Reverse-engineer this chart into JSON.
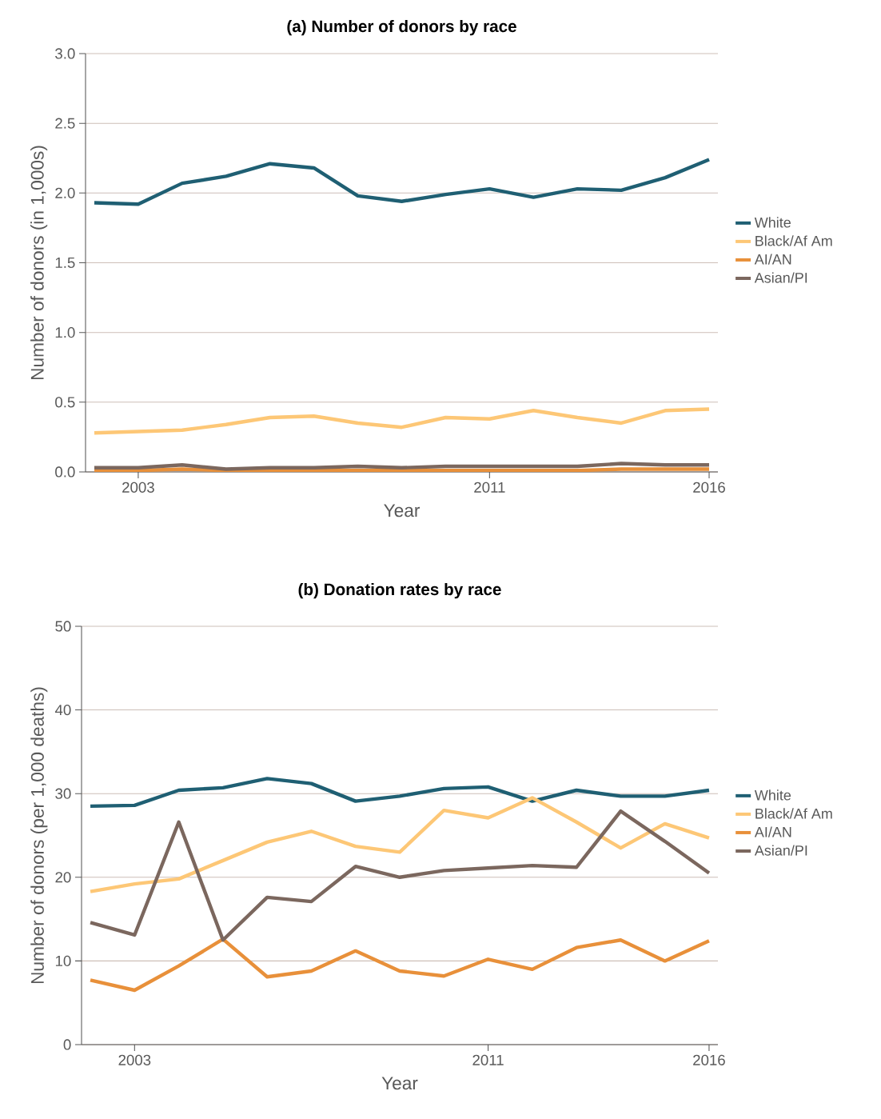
{
  "chart_data": [
    {
      "type": "line",
      "title": "(a) Number of donors by race",
      "xlabel": "Year",
      "ylabel": "Number of donors (in 1,000s)",
      "x": [
        2002,
        2003,
        2004,
        2005,
        2006,
        2007,
        2008,
        2009,
        2010,
        2011,
        2012,
        2013,
        2014,
        2015,
        2016
      ],
      "xlim": [
        2001.8,
        2016.2
      ],
      "xticks": [
        2003,
        2011,
        2016
      ],
      "ylim": [
        0,
        3
      ],
      "yticks": [
        {
          "value": 0,
          "label": "0.0"
        },
        {
          "value": 0.5,
          "label": "0.5"
        },
        {
          "value": 1,
          "label": "1.0"
        },
        {
          "value": 1.5,
          "label": "1.5"
        },
        {
          "value": 2,
          "label": "2.0"
        },
        {
          "value": 2.5,
          "label": "2.5"
        },
        {
          "value": 3,
          "label": "3.0"
        }
      ],
      "grid": "y",
      "legend": "right",
      "marker": "none",
      "line_style": "solid",
      "series": [
        {
          "name": "White",
          "color": "#1f5f73",
          "values": [
            1.93,
            1.92,
            2.07,
            2.12,
            2.21,
            2.18,
            1.98,
            1.94,
            1.99,
            2.03,
            1.97,
            2.03,
            2.02,
            2.11,
            2.24
          ]
        },
        {
          "name": "Black/Af Am",
          "color": "#fdc776",
          "values": [
            0.28,
            0.29,
            0.3,
            0.34,
            0.39,
            0.4,
            0.35,
            0.32,
            0.39,
            0.38,
            0.44,
            0.39,
            0.35,
            0.44,
            0.45
          ]
        },
        {
          "name": "AI/AN",
          "color": "#e8903a",
          "values": [
            0.01,
            0.01,
            0.02,
            0.01,
            0.01,
            0.01,
            0.01,
            0.01,
            0.01,
            0.01,
            0.01,
            0.01,
            0.02,
            0.02,
            0.02
          ]
        },
        {
          "name": "Asian/PI",
          "color": "#7b675e",
          "values": [
            0.03,
            0.03,
            0.05,
            0.02,
            0.03,
            0.03,
            0.04,
            0.03,
            0.04,
            0.04,
            0.04,
            0.04,
            0.06,
            0.05,
            0.05
          ]
        }
      ]
    },
    {
      "type": "line",
      "title": "(b) Donation rates by race",
      "xlabel": "Year",
      "ylabel": "Number of donors (per 1,000 deaths)",
      "x": [
        2002,
        2003,
        2004,
        2005,
        2006,
        2007,
        2008,
        2009,
        2010,
        2011,
        2012,
        2013,
        2014,
        2015,
        2016
      ],
      "xlim": [
        2001.8,
        2016.2
      ],
      "xticks": [
        2003,
        2011,
        2016
      ],
      "ylim": [
        0,
        50
      ],
      "yticks": [
        0,
        10,
        20,
        30,
        40,
        50
      ],
      "grid": "y",
      "legend": "right",
      "marker": "none",
      "line_style": "solid",
      "series": [
        {
          "name": "White",
          "color": "#1f5f73",
          "values": [
            28.5,
            28.6,
            30.4,
            30.7,
            31.8,
            31.2,
            29.1,
            29.7,
            30.6,
            30.8,
            29.1,
            30.4,
            29.7,
            29.7,
            30.4
          ]
        },
        {
          "name": "Black/Af Am",
          "color": "#fdc776",
          "values": [
            18.3,
            19.2,
            19.8,
            22.0,
            24.2,
            25.5,
            23.7,
            23.0,
            28.0,
            27.1,
            29.5,
            26.6,
            23.5,
            26.4,
            24.7
          ]
        },
        {
          "name": "AI/AN",
          "color": "#e8903a",
          "values": [
            7.7,
            6.5,
            9.4,
            12.6,
            8.1,
            8.8,
            11.2,
            8.8,
            8.2,
            10.2,
            9.0,
            11.6,
            12.5,
            10.0,
            12.4
          ]
        },
        {
          "name": "Asian/PI",
          "color": "#7b675e",
          "values": [
            14.6,
            13.1,
            26.6,
            12.5,
            17.6,
            17.1,
            21.3,
            20.0,
            20.8,
            21.1,
            21.4,
            21.2,
            27.9,
            24.3,
            20.5
          ]
        }
      ]
    }
  ]
}
